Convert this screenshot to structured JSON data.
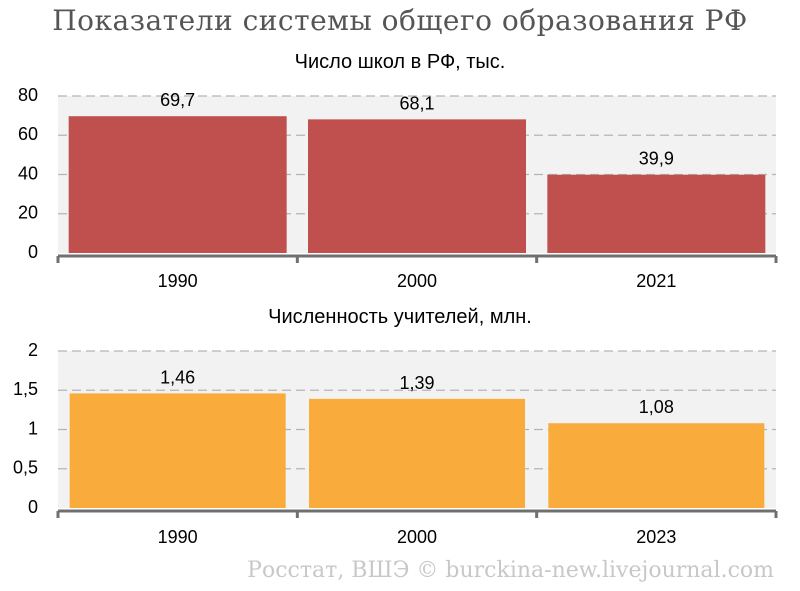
{
  "title": "Показатели системы общего образования РФ",
  "footer": "Росстат, ВШЭ © burckina-new.livejournal.com",
  "colors": {
    "schools": "#c0504d",
    "teachers": "#f9ac3c",
    "plot_bg": "#f2f2f2",
    "grid": "#b5b5b5",
    "axis": "#707070"
  },
  "chart_data": [
    {
      "type": "bar",
      "title": "Число школ в РФ, тыс.",
      "categories": [
        "1990",
        "2000",
        "2021"
      ],
      "values": [
        69.7,
        68.1,
        39.9
      ],
      "value_labels": [
        "69,7",
        "68,1",
        "39,9"
      ],
      "yticks": [
        0,
        20,
        40,
        60,
        80
      ],
      "ytick_labels": [
        "0",
        "20",
        "40",
        "60",
        "80"
      ],
      "ylim": [
        0,
        80
      ],
      "color": "#c0504d",
      "grid": true
    },
    {
      "type": "bar",
      "title": "Численность учителей, млн.",
      "categories": [
        "1990",
        "2000",
        "2023"
      ],
      "values": [
        1.46,
        1.39,
        1.08
      ],
      "value_labels": [
        "1,46",
        "1,39",
        "1,08"
      ],
      "yticks": [
        0,
        0.5,
        1,
        1.5,
        2
      ],
      "ytick_labels": [
        "0",
        "0,5",
        "1",
        "1,5",
        "2"
      ],
      "ylim": [
        0,
        2
      ],
      "color": "#f9ac3c",
      "grid": true
    }
  ]
}
